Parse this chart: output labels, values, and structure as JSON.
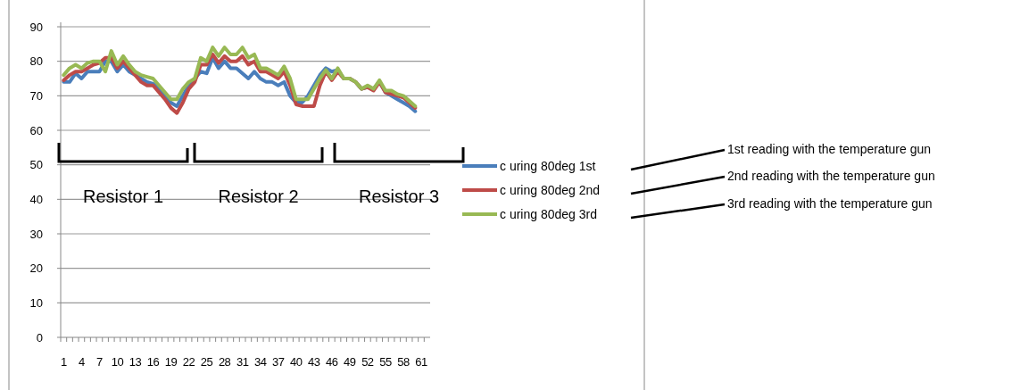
{
  "chart_data": {
    "type": "line",
    "categories": [
      "1",
      null,
      null,
      "4",
      null,
      null,
      "7",
      null,
      null,
      "10",
      null,
      null,
      "13",
      null,
      null,
      "16",
      null,
      null,
      "19",
      null,
      null,
      "22",
      null,
      null,
      "25",
      null,
      null,
      "28",
      null,
      null,
      "31",
      null,
      null,
      "34",
      null,
      null,
      "37",
      null,
      null,
      "40",
      null,
      null,
      "43",
      null,
      null,
      "46",
      null,
      null,
      "49",
      null,
      null,
      "52",
      null,
      null,
      "55",
      null,
      null,
      "58",
      null,
      null,
      "61",
      null
    ],
    "series": [
      {
        "name": "c uring 80deg 1st",
        "color": "#4a7ebb",
        "values": [
          74,
          74,
          76.5,
          75,
          77,
          77,
          77,
          80,
          80,
          77,
          79,
          77,
          76,
          75,
          74,
          73.5,
          72,
          70,
          68,
          67,
          70,
          73,
          75,
          77,
          76.5,
          81,
          78,
          80,
          78,
          78,
          76.5,
          75,
          77,
          75,
          74,
          74,
          73,
          74,
          70,
          68,
          68,
          70,
          73,
          76,
          78,
          77,
          77.5,
          75,
          75,
          74,
          72,
          72.5,
          72,
          74,
          71,
          70,
          69,
          68,
          67,
          65.5,
          null,
          null
        ]
      },
      {
        "name": "c uring 80deg 2nd",
        "color": "#be4b48",
        "values": [
          74.5,
          76,
          77,
          77,
          78,
          79,
          79.5,
          81,
          81,
          78,
          80,
          78,
          76,
          74,
          73,
          73,
          71,
          69,
          66.5,
          65,
          68,
          72,
          74,
          79,
          79,
          82,
          79.5,
          81.5,
          80,
          80,
          81.5,
          79,
          80,
          77,
          77,
          76,
          75,
          77,
          73,
          67.5,
          67,
          67,
          67,
          73,
          77,
          74.5,
          77,
          75,
          75,
          74,
          72,
          72.5,
          71.5,
          74,
          71,
          70.5,
          70,
          69.5,
          68,
          66.5,
          null,
          null
        ]
      },
      {
        "name": "c uring 80deg 3rd",
        "color": "#98b954",
        "values": [
          76,
          78,
          79,
          78,
          79.5,
          80,
          80,
          77,
          83,
          79,
          81.5,
          79,
          77,
          76,
          75.5,
          75,
          73,
          71,
          69,
          69,
          72,
          74,
          75,
          81,
          80,
          84,
          81.5,
          84,
          82,
          82,
          84,
          81,
          82,
          78,
          78,
          77,
          76,
          78.5,
          75,
          69,
          69,
          69,
          72,
          75,
          77.5,
          75,
          78,
          75,
          75,
          74,
          72,
          73,
          72,
          74.5,
          71.5,
          71.5,
          70.5,
          70,
          68.5,
          67,
          null,
          null
        ]
      }
    ],
    "ylim": [
      0,
      90
    ],
    "yticks": [
      0,
      10,
      20,
      30,
      40,
      50,
      60,
      70,
      80,
      90
    ],
    "grid": "y",
    "legend": "right",
    "line_style": "solid",
    "marker": "none",
    "annotations": [
      "Resistor 1",
      "Resistor 2",
      "Resistor 3",
      "1st reading with the temperature gun",
      "2nd reading with the temperature gun",
      "3rd reading with the temperature gun"
    ]
  }
}
